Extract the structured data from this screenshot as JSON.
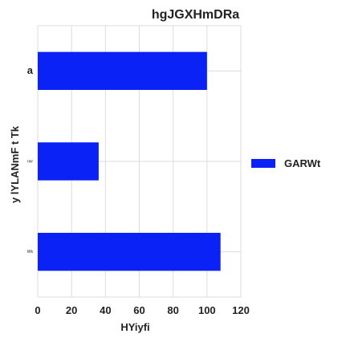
{
  "chart_data": {
    "type": "bar",
    "orientation": "horizontal",
    "title": "hgJGXHmDRa",
    "xlabel": "HYiyfi",
    "ylabel": "y lYLANmF t Tk",
    "categories": [
      "a",
      "rwr",
      "Wk"
    ],
    "series": [
      {
        "name": "GARWt",
        "values": [
          100,
          36,
          108
        ],
        "color": "#0a22f5"
      }
    ],
    "xlim": [
      0,
      120
    ],
    "xticks": [
      0,
      20,
      40,
      60,
      80,
      100,
      120
    ],
    "grid": true,
    "legend_position": "right"
  }
}
